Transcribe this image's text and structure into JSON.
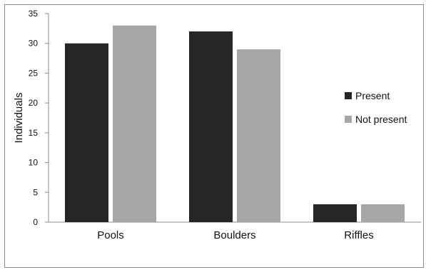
{
  "chart_data": {
    "type": "bar",
    "title": "",
    "xlabel": "",
    "ylabel": "Individuals",
    "ylim": [
      0,
      35
    ],
    "yticks": [
      0,
      5,
      10,
      15,
      20,
      25,
      30,
      35
    ],
    "categories": [
      "Pools",
      "Boulders",
      "Riffles"
    ],
    "series": [
      {
        "name": "Present",
        "color": "#262626",
        "values": [
          30,
          32,
          3
        ]
      },
      {
        "name": "Not present",
        "color": "#a6a6a6",
        "values": [
          33,
          29,
          3
        ]
      }
    ],
    "legend": "right",
    "grid": false
  }
}
